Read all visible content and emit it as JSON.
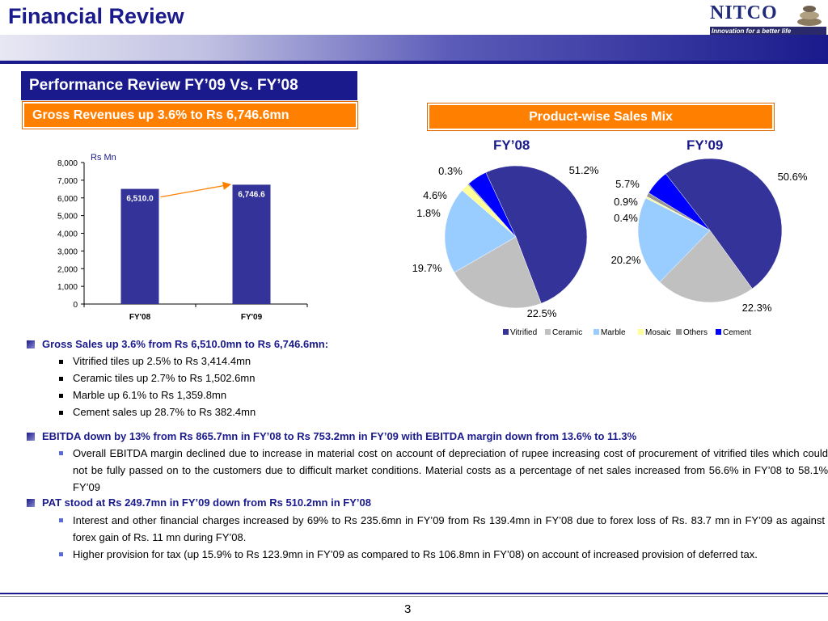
{
  "header": {
    "title": "Financial Review",
    "logo_text": "NITCO",
    "logo_tagline": "Innovation for a better life"
  },
  "section_title": "Performance Review FY’09 Vs. FY’08",
  "left_panel_title": "Gross Revenues up 3.6% to Rs 6,746.6mn",
  "right_panel_title": "Product-wise Sales Mix",
  "chart_data": [
    {
      "type": "bar",
      "ylabel": "Rs Mn",
      "categories": [
        "FY'08",
        "FY'09"
      ],
      "values": [
        6510.0,
        6746.6
      ],
      "value_labels": [
        "6,510.0",
        "6,746.6"
      ],
      "ylim": [
        0,
        8000
      ],
      "yticks": [
        "0",
        "1,000",
        "2,000",
        "3,000",
        "4,000",
        "5,000",
        "6,000",
        "7,000",
        "8,000"
      ],
      "color": "#333399",
      "annotation_arrow_color": "#ff7f00"
    },
    {
      "type": "pie",
      "title": "FY’08",
      "categories": [
        "Vitrified",
        "Ceramic",
        "Marble",
        "Mosaic",
        "Others",
        "Cement"
      ],
      "values": [
        51.2,
        22.5,
        19.7,
        1.8,
        0.3,
        4.6
      ],
      "labels": [
        "51.2%",
        "22.5%",
        "19.7%",
        "1.8%",
        "0.3%",
        "4.6%"
      ]
    },
    {
      "type": "pie",
      "title": "FY’09",
      "categories": [
        "Vitrified",
        "Ceramic",
        "Marble",
        "Mosaic",
        "Others",
        "Cement"
      ],
      "values": [
        50.6,
        22.3,
        20.2,
        0.4,
        0.9,
        5.7
      ],
      "labels": [
        "50.6%",
        "22.3%",
        "20.2%",
        "0.4%",
        "0.9%",
        "5.7%"
      ]
    }
  ],
  "legend": {
    "items": [
      "Vitrified",
      "Ceramic",
      "Marble",
      "Mosaic",
      "Others",
      "Cement"
    ],
    "colors": [
      "#333399",
      "#c0c0c0",
      "#99ccff",
      "#ffff99",
      "#969696",
      "#0000ff"
    ]
  },
  "bullets": {
    "gross_sales": {
      "heading": "Gross Sales up 3.6%  from Rs 6,510.0mn to Rs 6,746.6mn:",
      "items": [
        "Vitrified tiles up 2.5% to Rs 3,414.4mn",
        "Ceramic tiles up 2.7% to Rs 1,502.6mn",
        "Marble up 6.1% to Rs 1,359.8mn",
        "Cement sales up 28.7% to Rs 382.4mn"
      ]
    },
    "ebitda": {
      "heading": "EBITDA down by 13% from Rs 865.7mn in FY’08 to Rs 753.2mn in FY’09 with EBITDA margin down from 13.6% to 11.3%",
      "items": [
        "Overall EBITDA margin declined due to increase in material cost on account of depreciation of rupee increasing cost of procurement of vitrified tiles which could not be fully passed on to the customers due to difficult market conditions. Material costs as a percentage of net sales increased from 56.6% in FY’08 to 58.1% FY’09"
      ]
    },
    "pat": {
      "heading": "PAT stood at Rs 249.7mn in FY’09 down from Rs 510.2mn in FY’08",
      "items": [
        "Interest and other financial charges increased  by 69% to Rs 235.6mn in FY’09 from Rs 139.4mn in FY’08 due to forex loss of Rs. 83.7 mn in FY’09 as against  forex gain of Rs. 11 mn during FY’08.",
        "Higher provision for tax (up 15.9% to Rs 123.9mn in FY’09 as compared to Rs 106.8mn in FY’08) on account of increased provision of deferred tax."
      ]
    }
  },
  "footer": {
    "page_number": "3"
  }
}
